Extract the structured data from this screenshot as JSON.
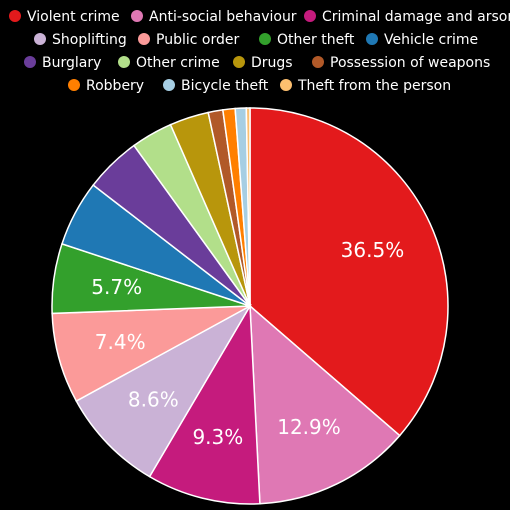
{
  "chart_data": {
    "type": "pie",
    "legend_position": "top",
    "slices": [
      {
        "name": "Violent crime",
        "value": 36.5,
        "label": "36.5%",
        "color": "#e31a1c"
      },
      {
        "name": "Anti-social behaviour",
        "value": 12.9,
        "label": "12.9%",
        "color": "#df78b4"
      },
      {
        "name": "Criminal damage and arson",
        "value": 9.3,
        "label": "9.3%",
        "color": "#c51b7d"
      },
      {
        "name": "Shoplifting",
        "value": 8.6,
        "label": "8.6%",
        "color": "#cab2d6"
      },
      {
        "name": "Public order",
        "value": 7.4,
        "label": "7.4%",
        "color": "#fb9a99"
      },
      {
        "name": "Other theft",
        "value": 5.7,
        "label": "5.7%",
        "color": "#33a02c"
      },
      {
        "name": "Vehicle crime",
        "value": 5.4,
        "label": "",
        "color": "#1f78b4"
      },
      {
        "name": "Burglary",
        "value": 4.6,
        "label": "",
        "color": "#6a3d9a"
      },
      {
        "name": "Other crime",
        "value": 3.4,
        "label": "",
        "color": "#b2df8a"
      },
      {
        "name": "Drugs",
        "value": 3.2,
        "label": "",
        "color": "#b8960c"
      },
      {
        "name": "Possession of weapons",
        "value": 1.2,
        "label": "",
        "color": "#b15928"
      },
      {
        "name": "Robbery",
        "value": 1.0,
        "label": "",
        "color": "#ff7f00"
      },
      {
        "name": "Bicycle theft",
        "value": 0.9,
        "label": "",
        "color": "#a6cee3"
      },
      {
        "name": "Theft from the person",
        "value": 0.3,
        "label": "",
        "color": "#fdbf6f"
      }
    ]
  }
}
